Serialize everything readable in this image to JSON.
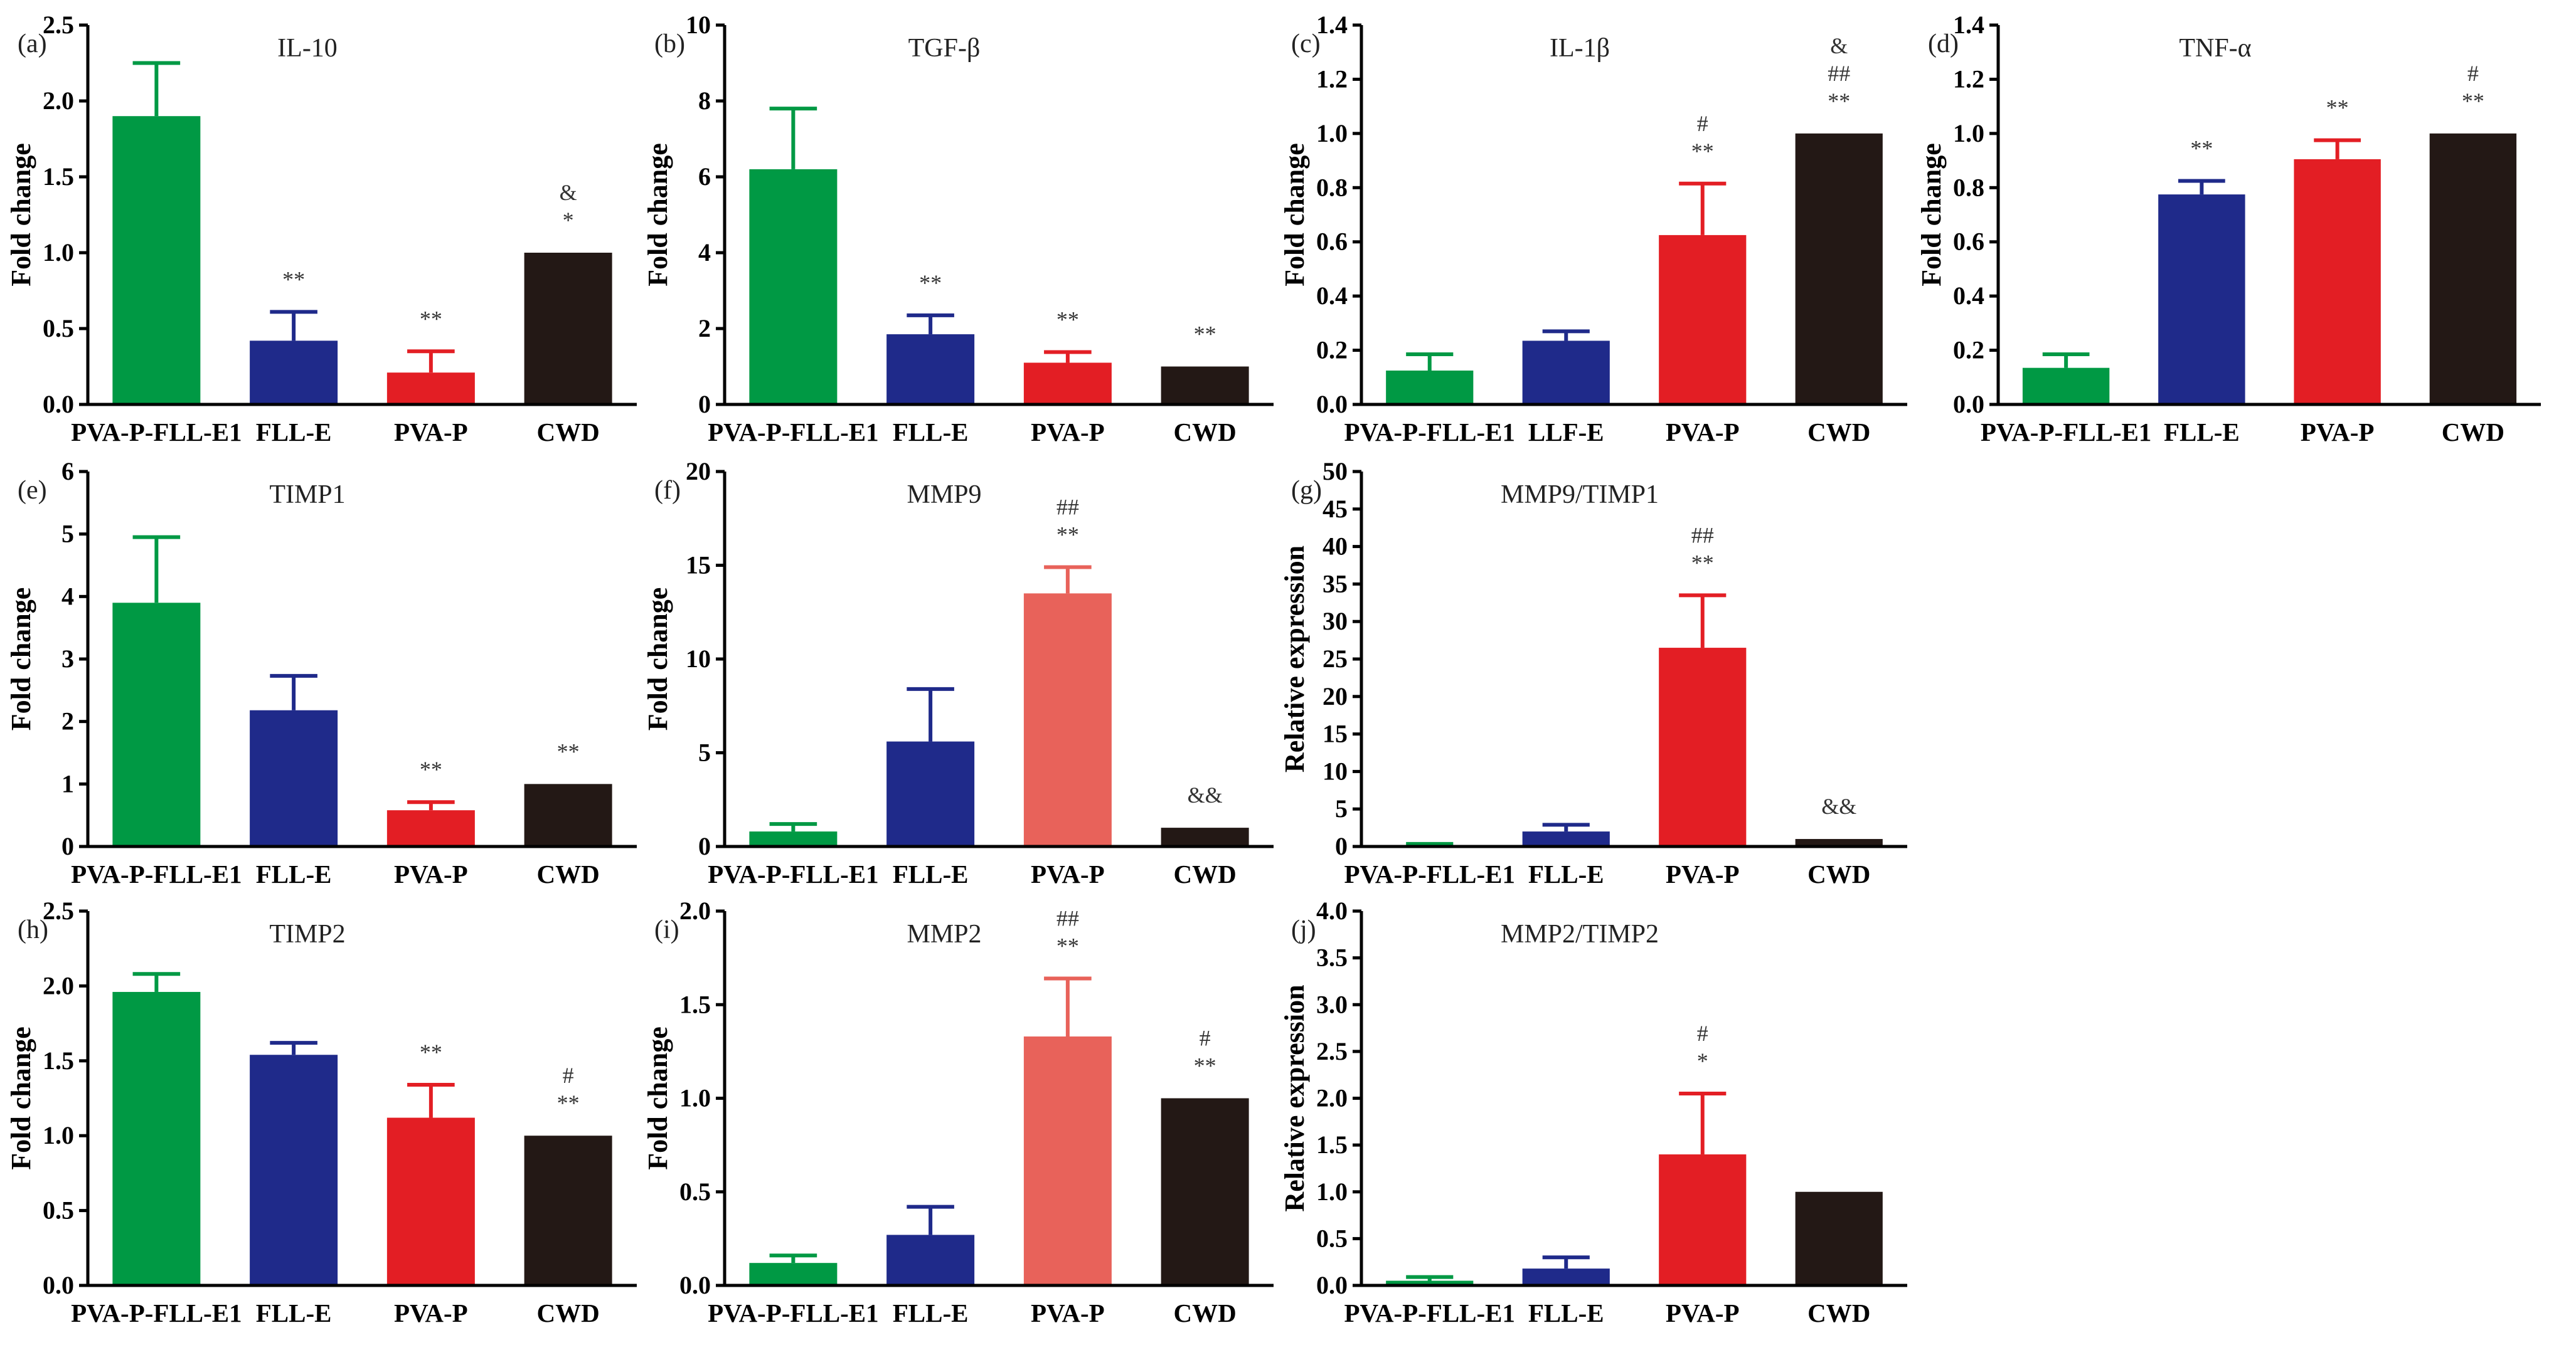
{
  "colors": {
    "green": "#009944",
    "blue": "#1f2a8a",
    "red": "#e31e24",
    "salmon": "#e8625a",
    "black": "#231815"
  },
  "chart_data": [
    {
      "panel_letter": "(a)",
      "title": "IL-10",
      "type": "bar",
      "ylabel": "Fold change",
      "ylim": [
        0,
        2.5
      ],
      "yticks": [
        "0.0",
        "0.5",
        "1.0",
        "1.5",
        "2.0",
        "2.5"
      ],
      "categories": [
        "PVA-P-FLL-E1",
        "FLL-E",
        "PVA-P",
        "CWD"
      ],
      "values": [
        1.9,
        0.42,
        0.21,
        1.0
      ],
      "errors": [
        0.35,
        0.19,
        0.14,
        0.0
      ],
      "bar_colors": [
        "green",
        "blue",
        "red",
        "black"
      ],
      "annotations": [
        [],
        [
          "**"
        ],
        [
          "**"
        ],
        [
          "*",
          "&"
        ]
      ]
    },
    {
      "panel_letter": "(b)",
      "title": "TGF-β",
      "type": "bar",
      "ylabel": "Fold change",
      "ylim": [
        0,
        10
      ],
      "yticks": [
        "0",
        "2",
        "4",
        "6",
        "8",
        "10"
      ],
      "categories": [
        "PVA-P-FLL-E1",
        "FLL-E",
        "PVA-P",
        "CWD"
      ],
      "values": [
        6.2,
        1.85,
        1.1,
        1.0
      ],
      "errors": [
        1.6,
        0.5,
        0.28,
        0.0
      ],
      "bar_colors": [
        "green",
        "blue",
        "red",
        "black"
      ],
      "annotations": [
        [],
        [
          "**"
        ],
        [
          "**"
        ],
        [
          "**"
        ]
      ]
    },
    {
      "panel_letter": "(c)",
      "title": "IL-1β",
      "type": "bar",
      "ylabel": "Fold change",
      "ylim": [
        0,
        1.4
      ],
      "yticks": [
        "0.0",
        "0.2",
        "0.4",
        "0.6",
        "0.8",
        "1.0",
        "1.2",
        "1.4"
      ],
      "categories": [
        "PVA-P-FLL-E1",
        "LLF-E",
        "PVA-P",
        "CWD"
      ],
      "values": [
        0.125,
        0.235,
        0.625,
        1.0
      ],
      "errors": [
        0.06,
        0.035,
        0.19,
        0.0
      ],
      "bar_colors": [
        "green",
        "blue",
        "red",
        "black"
      ],
      "annotations": [
        [],
        [],
        [
          "**",
          "#"
        ],
        [
          "**",
          "##",
          "&"
        ]
      ]
    },
    {
      "panel_letter": "(d)",
      "title": "TNF-α",
      "type": "bar",
      "ylabel": "Fold change",
      "ylim": [
        0,
        1.4
      ],
      "yticks": [
        "0.0",
        "0.2",
        "0.4",
        "0.6",
        "0.8",
        "1.0",
        "1.2",
        "1.4"
      ],
      "categories": [
        "PVA-P-FLL-E1",
        "FLL-E",
        "PVA-P",
        "CWD"
      ],
      "values": [
        0.135,
        0.775,
        0.905,
        1.0
      ],
      "errors": [
        0.05,
        0.05,
        0.07,
        0.0
      ],
      "bar_colors": [
        "green",
        "blue",
        "red",
        "black"
      ],
      "annotations": [
        [],
        [
          "**"
        ],
        [
          "**"
        ],
        [
          "**",
          "#"
        ]
      ]
    },
    {
      "panel_letter": "(e)",
      "title": "TIMP1",
      "type": "bar",
      "ylabel": "Fold change",
      "ylim": [
        0,
        6
      ],
      "yticks": [
        "0",
        "1",
        "2",
        "3",
        "4",
        "5",
        "6"
      ],
      "categories": [
        "PVA-P-FLL-E1",
        "FLL-E",
        "PVA-P",
        "CWD"
      ],
      "values": [
        3.9,
        2.18,
        0.58,
        1.0
      ],
      "errors": [
        1.05,
        0.55,
        0.13,
        0.0
      ],
      "bar_colors": [
        "green",
        "blue",
        "red",
        "black"
      ],
      "annotations": [
        [],
        [],
        [
          "**"
        ],
        [
          "**"
        ]
      ]
    },
    {
      "panel_letter": "(f)",
      "title": "MMP9",
      "type": "bar",
      "ylabel": "Fold change",
      "ylim": [
        0,
        20
      ],
      "yticks": [
        "0",
        "5",
        "10",
        "15",
        "20"
      ],
      "categories": [
        "PVA-P-FLL-E1",
        "FLL-E",
        "PVA-P",
        "CWD"
      ],
      "values": [
        0.8,
        5.6,
        13.5,
        1.0
      ],
      "errors": [
        0.4,
        2.8,
        1.4,
        0.0
      ],
      "bar_colors": [
        "green",
        "blue",
        "salmon",
        "black"
      ],
      "annotations": [
        [],
        [],
        [
          "**",
          "##"
        ],
        [
          "&&"
        ]
      ]
    },
    {
      "panel_letter": "(g)",
      "title": "MMP9/TIMP1",
      "type": "bar",
      "ylabel": "Relative expression",
      "ylim": [
        0,
        50
      ],
      "yticks": [
        "0",
        "5",
        "10",
        "15",
        "20",
        "25",
        "30",
        "35",
        "40",
        "45",
        "50"
      ],
      "categories": [
        "PVA-P-FLL-E1",
        "FLL-E",
        "PVA-P",
        "CWD"
      ],
      "values": [
        0.2,
        2.0,
        26.5,
        1.0
      ],
      "errors": [
        0.15,
        0.9,
        7.0,
        0.0
      ],
      "bar_colors": [
        "green",
        "blue",
        "red",
        "black"
      ],
      "annotations": [
        [],
        [],
        [
          "**",
          "##"
        ],
        [
          "&&"
        ]
      ]
    },
    {
      "panel_letter": "(h)",
      "title": "TIMP2",
      "type": "bar",
      "ylabel": "Fold change",
      "ylim": [
        0,
        2.5
      ],
      "yticks": [
        "0.0",
        "0.5",
        "1.0",
        "1.5",
        "2.0",
        "2.5"
      ],
      "categories": [
        "PVA-P-FLL-E1",
        "FLL-E",
        "PVA-P",
        "CWD"
      ],
      "values": [
        1.96,
        1.54,
        1.12,
        1.0
      ],
      "errors": [
        0.12,
        0.08,
        0.22,
        0.0
      ],
      "bar_colors": [
        "green",
        "blue",
        "red",
        "black"
      ],
      "annotations": [
        [],
        [],
        [
          "**"
        ],
        [
          "**",
          "#"
        ]
      ]
    },
    {
      "panel_letter": "(i)",
      "title": "MMP2",
      "type": "bar",
      "ylabel": "Fold change",
      "ylim": [
        0,
        2.0
      ],
      "yticks": [
        "0.0",
        "0.5",
        "1.0",
        "1.5",
        "2.0"
      ],
      "categories": [
        "PVA-P-FLL-E1",
        "FLL-E",
        "PVA-P",
        "CWD"
      ],
      "values": [
        0.12,
        0.27,
        1.33,
        1.0
      ],
      "errors": [
        0.04,
        0.15,
        0.31,
        0.0
      ],
      "bar_colors": [
        "green",
        "blue",
        "salmon",
        "black"
      ],
      "annotations": [
        [],
        [],
        [
          "**",
          "##"
        ],
        [
          "**",
          "#"
        ]
      ]
    },
    {
      "panel_letter": "(j)",
      "title": "MMP2/TIMP2",
      "type": "bar",
      "ylabel": "Relative expression",
      "ylim": [
        0,
        4.0
      ],
      "yticks": [
        "0.0",
        "0.5",
        "1.0",
        "1.5",
        "2.0",
        "2.5",
        "3.0",
        "3.5",
        "4.0"
      ],
      "categories": [
        "PVA-P-FLL-E1",
        "FLL-E",
        "PVA-P",
        "CWD"
      ],
      "values": [
        0.05,
        0.18,
        1.4,
        1.0
      ],
      "errors": [
        0.04,
        0.12,
        0.65,
        0.0
      ],
      "bar_colors": [
        "green",
        "blue",
        "red",
        "black"
      ],
      "annotations": [
        [],
        [],
        [
          "*",
          "#"
        ],
        []
      ]
    }
  ]
}
